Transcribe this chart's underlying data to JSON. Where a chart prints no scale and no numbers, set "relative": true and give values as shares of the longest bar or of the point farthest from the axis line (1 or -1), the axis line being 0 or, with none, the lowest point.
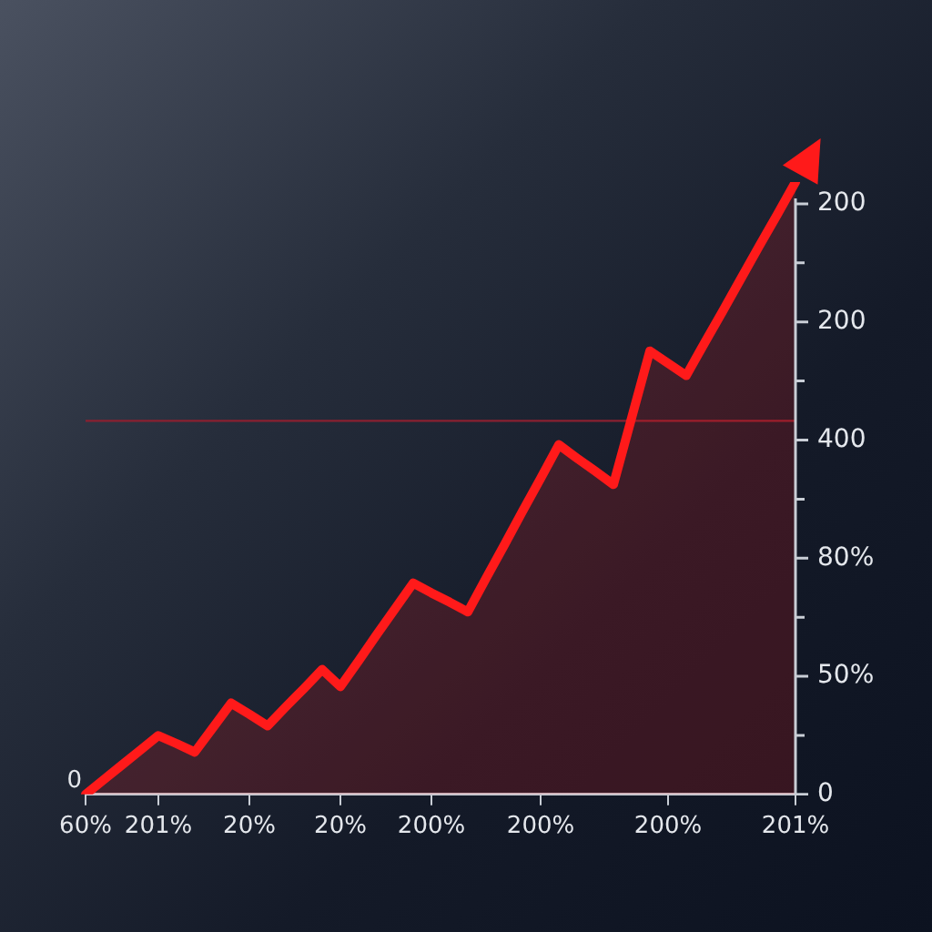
{
  "chart_data": {
    "type": "area",
    "relative": true,
    "categories": [
      "60%",
      null,
      null,
      null,
      "201%",
      null,
      null,
      null,
      null,
      "20%",
      null,
      null,
      null,
      null,
      "20%",
      null,
      null,
      null,
      null,
      "200%",
      null,
      null,
      null,
      null,
      null,
      "200%",
      null,
      null,
      null,
      null,
      null,
      null,
      "200%",
      null,
      null,
      null,
      null,
      null,
      null,
      "201%"
    ],
    "series": [
      {
        "color": "#ff1a1a",
        "values": [
          0,
          0.024,
          0.048,
          0.072,
          0.096,
          0.083,
          0.069,
          0.109,
          0.149,
          0.131,
          0.112,
          0.143,
          0.173,
          0.204,
          0.176,
          0.218,
          0.261,
          0.303,
          0.345,
          0.329,
          0.314,
          0.298,
          0.353,
          0.407,
          0.462,
          0.516,
          0.571,
          0.549,
          0.528,
          0.506,
          0.615,
          0.724,
          0.704,
          0.684,
          0.737,
          0.789,
          0.842,
          0.895,
          0.947,
          1
        ]
      }
    ],
    "ref_lines": [
      {
        "axis": "y",
        "value": 0.61,
        "color": "#8a2030"
      }
    ],
    "annotations": [
      "200",
      "200",
      "400",
      "80%",
      "50%",
      "0",
      {
        "text": "0",
        "x": "60%",
        "y": 0
      }
    ],
    "grid": false,
    "legend": false,
    "marker": "none",
    "line_style": "solid"
  }
}
